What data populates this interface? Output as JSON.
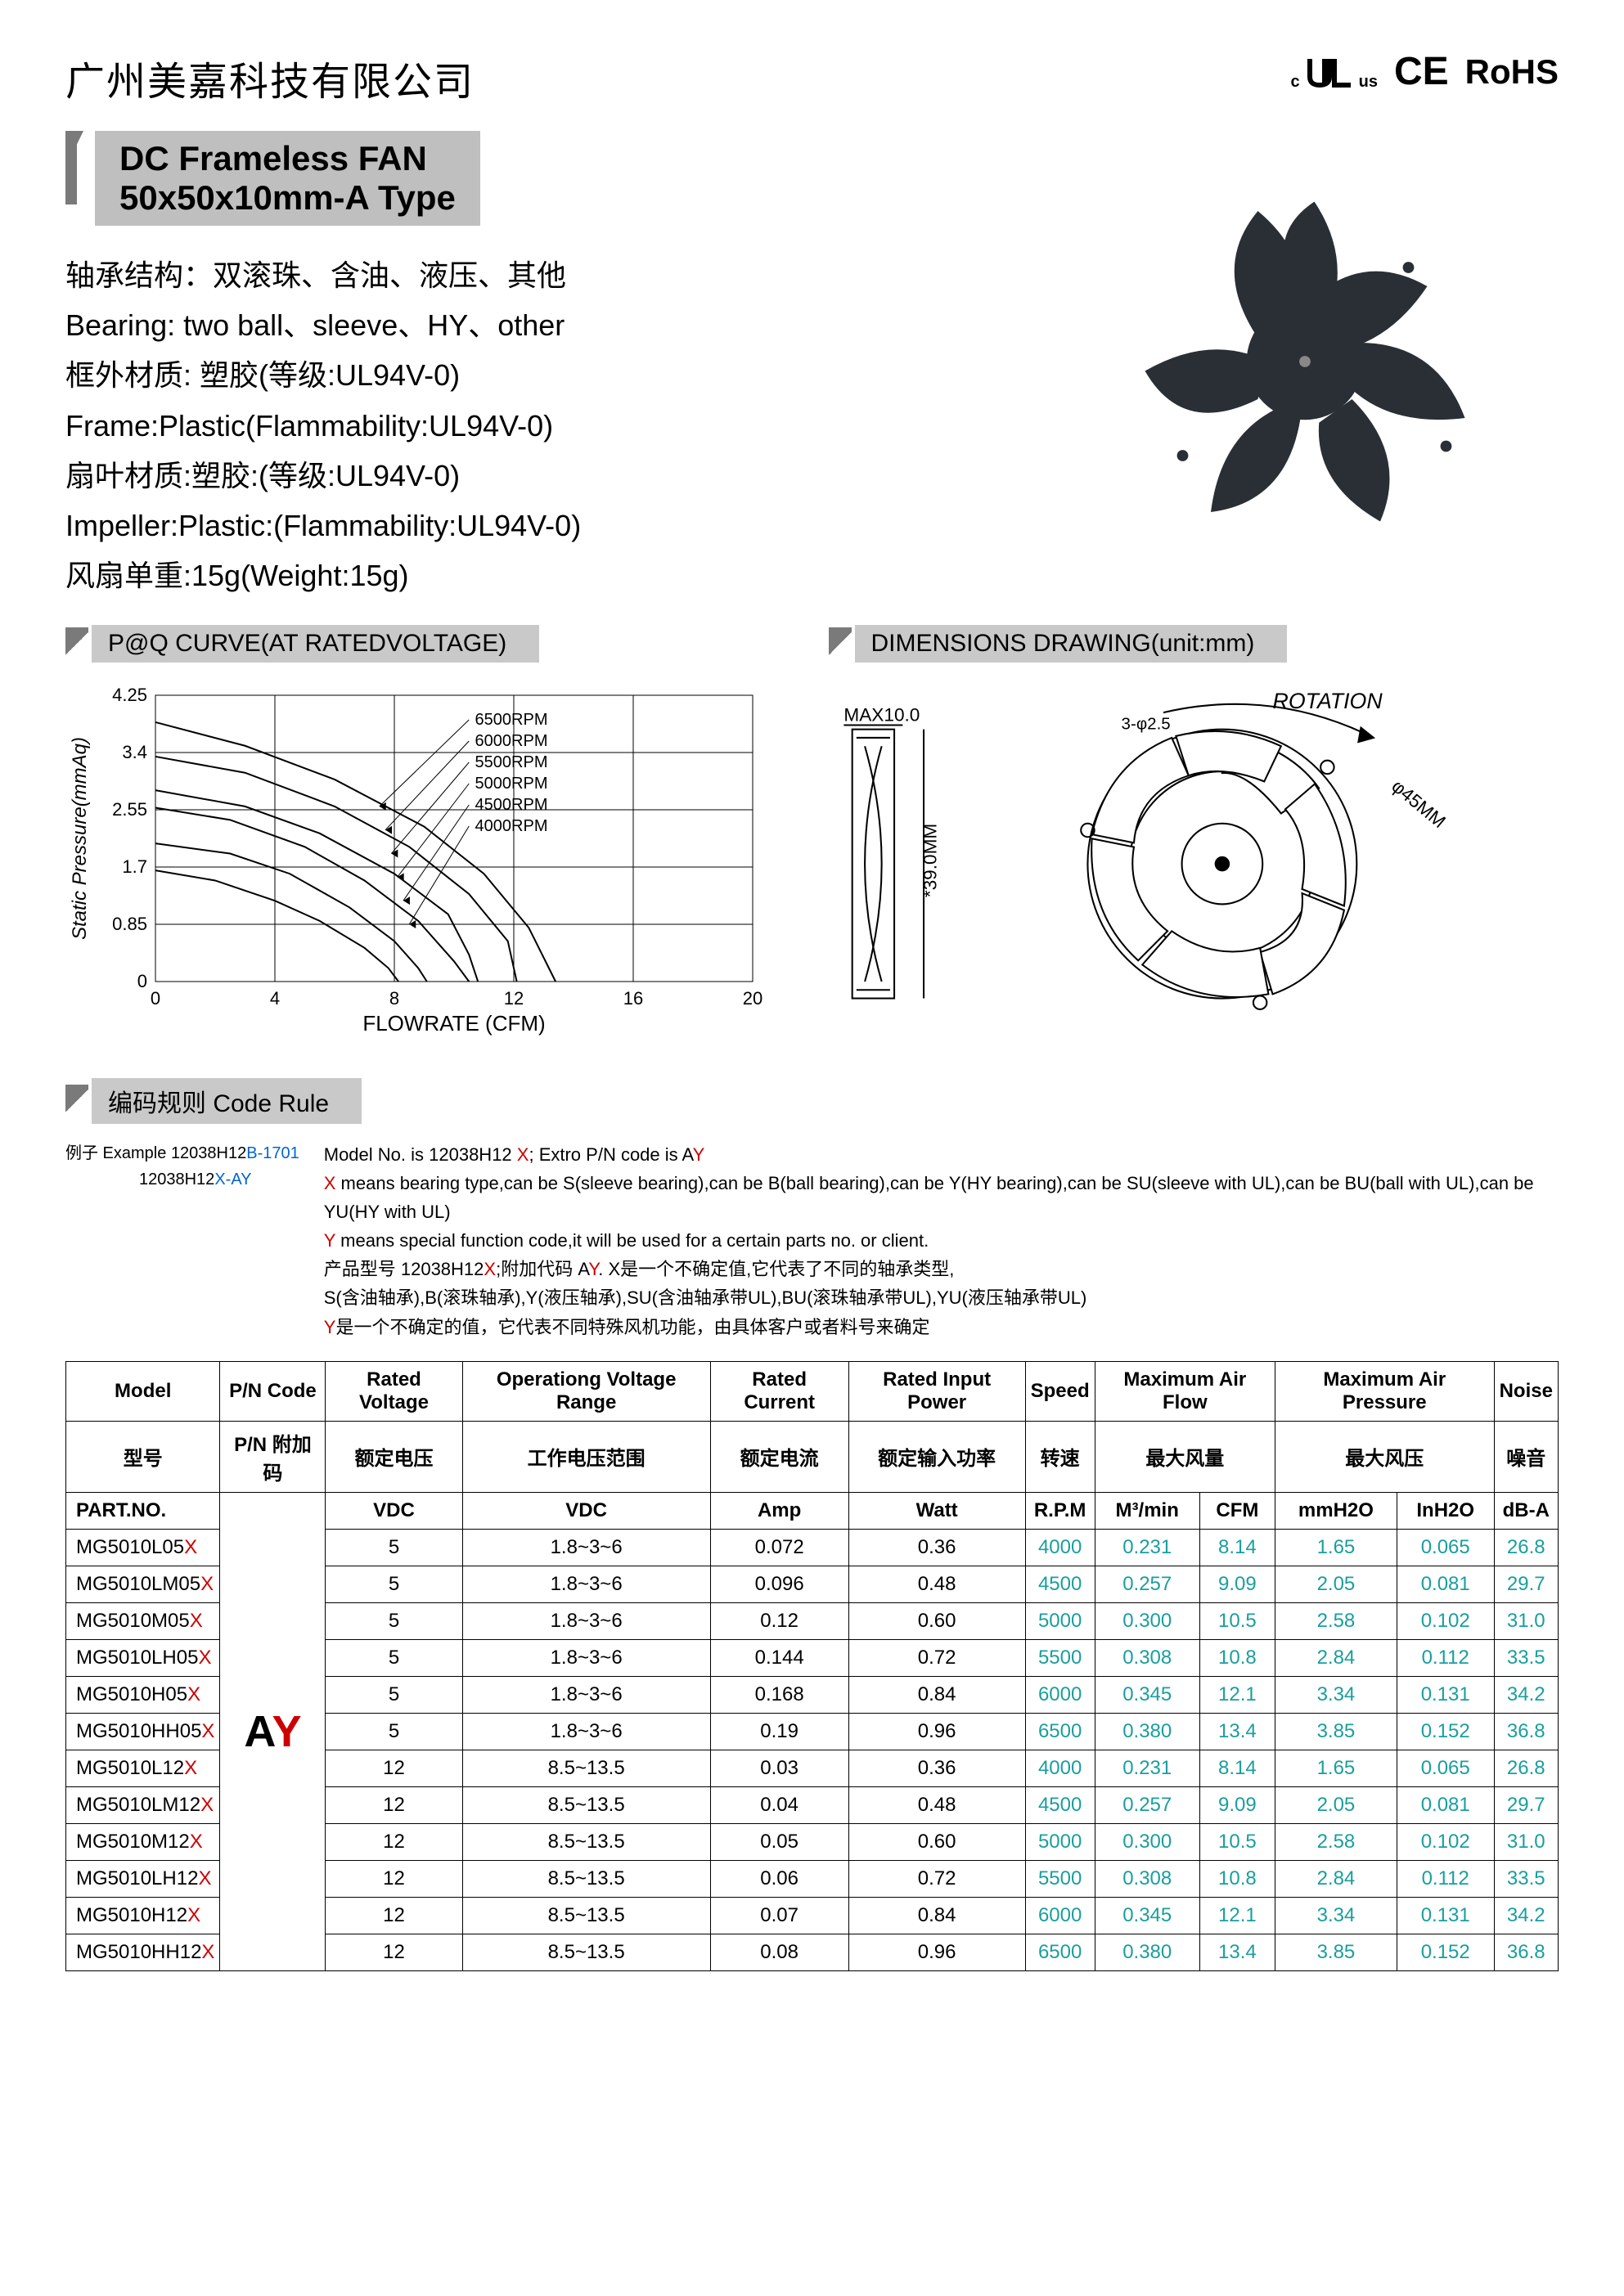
{
  "company": "广州美嘉科技有限公司",
  "certs": {
    "ul_c": "c",
    "ul_us": "us",
    "ce": "CE",
    "rohs": "RoHS"
  },
  "title": {
    "line1": "DC Frameless FAN",
    "line2": "50x50x10mm-A Type"
  },
  "specs": [
    "轴承结构：双滚珠、含油、液压、其他",
    "Bearing: two ball、sleeve、HY、other",
    "框外材质: 塑胶(等级:UL94V-0)",
    "Frame:Plastic(Flammability:UL94V-0)",
    "扇叶材质:塑胶:(等级:UL94V-0)",
    "Impeller:Plastic:(Flammability:UL94V-0)",
    "风扇单重:15g(Weight:15g)"
  ],
  "sections": {
    "pq": "P@Q CURVE(AT RATEDVOLTAGE)",
    "dim": "DIMENSIONS DRAWING(unit:mm)",
    "code": "编码规则 Code Rule"
  },
  "chart": {
    "ylabel": "Static Pressure(mmAq)",
    "xlabel": "FLOWRATE (CFM)",
    "xlim": [
      0,
      20
    ],
    "ylim": [
      0,
      4.25
    ],
    "xticks": [
      0,
      4,
      8,
      12,
      16,
      20
    ],
    "yticks": [
      0,
      0.85,
      1.7,
      2.55,
      3.4,
      4.25
    ],
    "curve_labels": [
      "6500RPM",
      "6000RPM",
      "5500RPM",
      "5000RPM",
      "4500RPM",
      "4000RPM"
    ],
    "curves": [
      [
        [
          0,
          3.85
        ],
        [
          3,
          3.5
        ],
        [
          6,
          3.0
        ],
        [
          9,
          2.3
        ],
        [
          11,
          1.6
        ],
        [
          12.5,
          0.8
        ],
        [
          13.4,
          0
        ]
      ],
      [
        [
          0,
          3.34
        ],
        [
          3,
          3.1
        ],
        [
          6,
          2.6
        ],
        [
          8.5,
          2.0
        ],
        [
          10.5,
          1.3
        ],
        [
          11.8,
          0.6
        ],
        [
          12.1,
          0
        ]
      ],
      [
        [
          0,
          2.84
        ],
        [
          3,
          2.6
        ],
        [
          5.5,
          2.2
        ],
        [
          8,
          1.6
        ],
        [
          9.8,
          1.0
        ],
        [
          10.5,
          0.4
        ],
        [
          10.8,
          0
        ]
      ],
      [
        [
          0,
          2.58
        ],
        [
          2.5,
          2.4
        ],
        [
          5,
          2.0
        ],
        [
          7,
          1.5
        ],
        [
          8.8,
          0.9
        ],
        [
          10,
          0.3
        ],
        [
          10.5,
          0
        ]
      ],
      [
        [
          0,
          2.05
        ],
        [
          2.5,
          1.9
        ],
        [
          4.5,
          1.6
        ],
        [
          6.5,
          1.1
        ],
        [
          8,
          0.6
        ],
        [
          8.8,
          0.2
        ],
        [
          9.09,
          0
        ]
      ],
      [
        [
          0,
          1.65
        ],
        [
          2,
          1.5
        ],
        [
          4,
          1.2
        ],
        [
          5.5,
          0.9
        ],
        [
          7,
          0.5
        ],
        [
          7.8,
          0.2
        ],
        [
          8.14,
          0
        ]
      ]
    ],
    "line_color": "#000000",
    "grid_color": "#000000",
    "bg": "#ffffff"
  },
  "dim_labels": {
    "max": "MAX10.0",
    "rotation": "ROTATION",
    "d45": "φ45MM",
    "h39": "*39.0MM",
    "ang": "3-φ2.5"
  },
  "example": {
    "label": "例子 Example",
    "code1": "12038H12",
    "code1b": "B-1701",
    "code2": "12038H12",
    "code2b": "X-AY"
  },
  "code_desc": {
    "l1a": "Model No. is 12038H12 ",
    "l1x": "X",
    "l1b": "; Extro P/N code  is  A",
    "l1y": "Y",
    "l2x": "X",
    "l2": " means bearing type,can be S(sleeve bearing),can be B(ball bearing),can be Y(HY bearing),can be SU(sleeve with UL),can be BU(ball with UL),can be YU(HY with UL)",
    "l3y": "Y",
    "l3": " means special function code,it will be used for a certain parts no. or client.",
    "l4a": "产品型号 12038H12",
    "l4x": "X",
    "l4b": ";附加代码 A",
    "l4y": "Y",
    "l4c": ". X是一个不确定值,它代表了不同的轴承类型,",
    "l5": "S(含油轴承),B(滚珠轴承),Y(液压轴承),SU(含油轴承带UL),BU(滚珠轴承带UL),YU(液压轴承带UL)",
    "l6y": "Y",
    "l6": "是一个不确定的值，它代表不同特殊风机功能，由具体客户或者料号来确定"
  },
  "table": {
    "h1": [
      "Model",
      "P/N Code",
      "Rated Voltage",
      "Operationg Voltage Range",
      "Rated Current",
      "Rated Input Power",
      "Speed",
      "Maximum Air Flow",
      "Maximum Air Pressure",
      "Noise"
    ],
    "h2": [
      "型号",
      "P/N 附加码",
      "额定电压",
      "工作电压范围",
      "额定电流",
      "额定输入功率",
      "转速",
      "最大风量",
      "最大风压",
      "噪音"
    ],
    "h3": [
      "PART.NO.",
      "",
      "VDC",
      "VDC",
      "Amp",
      "Watt",
      "R.P.M",
      "M³/min",
      "CFM",
      "mmH2O",
      "InH2O",
      "dB-A"
    ],
    "pn": "AY",
    "rows": [
      {
        "m": "MG5010L05",
        "v": "5",
        "r": "1.8~3~6",
        "c": "0.072",
        "p": "0.36",
        "s": "4000",
        "af1": "0.231",
        "af2": "8.14",
        "ap1": "1.65",
        "ap2": "0.065",
        "n": "26.8"
      },
      {
        "m": "MG5010LM05",
        "v": "5",
        "r": "1.8~3~6",
        "c": "0.096",
        "p": "0.48",
        "s": "4500",
        "af1": "0.257",
        "af2": "9.09",
        "ap1": "2.05",
        "ap2": "0.081",
        "n": "29.7"
      },
      {
        "m": "MG5010M05",
        "v": "5",
        "r": "1.8~3~6",
        "c": "0.12",
        "p": "0.60",
        "s": "5000",
        "af1": "0.300",
        "af2": "10.5",
        "ap1": "2.58",
        "ap2": "0.102",
        "n": "31.0"
      },
      {
        "m": "MG5010LH05",
        "v": "5",
        "r": "1.8~3~6",
        "c": "0.144",
        "p": "0.72",
        "s": "5500",
        "af1": "0.308",
        "af2": "10.8",
        "ap1": "2.84",
        "ap2": "0.112",
        "n": "33.5"
      },
      {
        "m": "MG5010H05",
        "v": "5",
        "r": "1.8~3~6",
        "c": "0.168",
        "p": "0.84",
        "s": "6000",
        "af1": "0.345",
        "af2": "12.1",
        "ap1": "3.34",
        "ap2": "0.131",
        "n": "34.2"
      },
      {
        "m": "MG5010HH05",
        "v": "5",
        "r": "1.8~3~6",
        "c": "0.19",
        "p": "0.96",
        "s": "6500",
        "af1": "0.380",
        "af2": "13.4",
        "ap1": "3.85",
        "ap2": "0.152",
        "n": "36.8"
      },
      {
        "m": "MG5010L12",
        "v": "12",
        "r": "8.5~13.5",
        "c": "0.03",
        "p": "0.36",
        "s": "4000",
        "af1": "0.231",
        "af2": "8.14",
        "ap1": "1.65",
        "ap2": "0.065",
        "n": "26.8"
      },
      {
        "m": "MG5010LM12",
        "v": "12",
        "r": "8.5~13.5",
        "c": "0.04",
        "p": "0.48",
        "s": "4500",
        "af1": "0.257",
        "af2": "9.09",
        "ap1": "2.05",
        "ap2": "0.081",
        "n": "29.7"
      },
      {
        "m": "MG5010M12",
        "v": "12",
        "r": "8.5~13.5",
        "c": "0.05",
        "p": "0.60",
        "s": "5000",
        "af1": "0.300",
        "af2": "10.5",
        "ap1": "2.58",
        "ap2": "0.102",
        "n": "31.0"
      },
      {
        "m": "MG5010LH12",
        "v": "12",
        "r": "8.5~13.5",
        "c": "0.06",
        "p": "0.72",
        "s": "5500",
        "af1": "0.308",
        "af2": "10.8",
        "ap1": "2.84",
        "ap2": "0.112",
        "n": "33.5"
      },
      {
        "m": "MG5010H12",
        "v": "12",
        "r": "8.5~13.5",
        "c": "0.07",
        "p": "0.84",
        "s": "6000",
        "af1": "0.345",
        "af2": "12.1",
        "ap1": "3.34",
        "ap2": "0.131",
        "n": "34.2"
      },
      {
        "m": "MG5010HH12",
        "v": "12",
        "r": "8.5~13.5",
        "c": "0.08",
        "p": "0.96",
        "s": "6500",
        "af1": "0.380",
        "af2": "13.4",
        "ap1": "3.85",
        "ap2": "0.152",
        "n": "36.8"
      }
    ]
  }
}
